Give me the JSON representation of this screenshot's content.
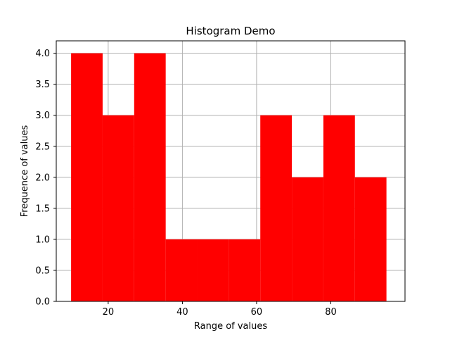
{
  "chart_data": {
    "type": "bar",
    "title": "Histogram Demo",
    "xlabel": "Range of values",
    "ylabel": "Frequence of values",
    "xlim": [
      6,
      100
    ],
    "ylim": [
      0,
      4.2
    ],
    "xticks": [
      20,
      40,
      60,
      80
    ],
    "yticks": [
      0.0,
      0.5,
      1.0,
      1.5,
      2.0,
      2.5,
      3.0,
      3.5,
      4.0
    ],
    "grid": true,
    "bar_color": "#ff0000",
    "bins": [
      {
        "x0": 10.0,
        "x1": 18.5,
        "value": 4
      },
      {
        "x0": 18.5,
        "x1": 27.0,
        "value": 3
      },
      {
        "x0": 27.0,
        "x1": 35.5,
        "value": 4
      },
      {
        "x0": 35.5,
        "x1": 44.0,
        "value": 1
      },
      {
        "x0": 44.0,
        "x1": 52.5,
        "value": 1
      },
      {
        "x0": 52.5,
        "x1": 61.0,
        "value": 1
      },
      {
        "x0": 61.0,
        "x1": 69.5,
        "value": 3
      },
      {
        "x0": 69.5,
        "x1": 78.0,
        "value": 2
      },
      {
        "x0": 78.0,
        "x1": 86.5,
        "value": 3
      },
      {
        "x0": 86.5,
        "x1": 95.0,
        "value": 2
      }
    ]
  }
}
